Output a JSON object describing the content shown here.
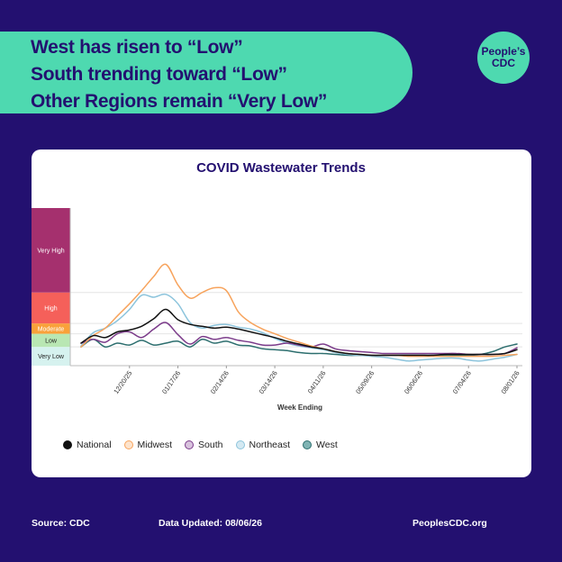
{
  "headline": {
    "line1": "West has risen to “Low”",
    "line2": "South trending toward “Low”",
    "line3": "Other Regions remain “Very Low”"
  },
  "logo": {
    "line1": "People’s",
    "line2": "CDC"
  },
  "footer": {
    "source": "Source: CDC",
    "updated": "Data Updated: 08/06/26",
    "site": "PeoplesCDC.org"
  },
  "colors": {
    "background": "#231070",
    "accent": "#4ed9b0"
  },
  "chart_data": {
    "type": "line",
    "title": "COVID Wastewater Trends",
    "xlabel": "Week Ending",
    "ylabel": "",
    "x_tick_labels": [
      "12/20/25",
      "01/17/26",
      "02/14/26",
      "03/14/26",
      "04/11/26",
      "05/09/26",
      "06/06/26",
      "07/04/26",
      "08/01/26"
    ],
    "x_tick_index": [
      4,
      8,
      12,
      16,
      20,
      24,
      28,
      32,
      36
    ],
    "x": [
      "11/22/25",
      "11/29/25",
      "12/06/25",
      "12/13/25",
      "12/20/25",
      "12/27/25",
      "01/03/26",
      "01/10/26",
      "01/17/26",
      "01/24/26",
      "01/31/26",
      "02/07/26",
      "02/14/26",
      "02/21/26",
      "02/28/26",
      "03/07/26",
      "03/14/26",
      "03/21/26",
      "03/28/26",
      "04/04/26",
      "04/11/26",
      "04/18/26",
      "04/25/26",
      "05/02/26",
      "05/09/26",
      "05/16/26",
      "05/23/26",
      "05/30/26",
      "06/06/26",
      "06/13/26",
      "06/20/26",
      "06/27/26",
      "07/04/26",
      "07/11/26",
      "07/18/26",
      "07/25/26",
      "08/01/26"
    ],
    "levels": [
      {
        "name": "Very Low",
        "range": [
          0,
          2
        ],
        "color": "#d6f2ef",
        "text": "#222222"
      },
      {
        "name": "Low",
        "range": [
          2,
          3.4
        ],
        "color": "#b9e7b3",
        "text": "#222222"
      },
      {
        "name": "Moderate",
        "range": [
          3.4,
          4.5
        ],
        "color": "#f9a13a",
        "text": "#ffffff"
      },
      {
        "name": "High",
        "range": [
          4.5,
          7.8
        ],
        "color": "#f5605a",
        "text": "#ffffff"
      },
      {
        "name": "Very High",
        "range": [
          7.8,
          16.8
        ],
        "color": "#a5306e",
        "text": "#ffffff"
      }
    ],
    "ylim": [
      0,
      16.8
    ],
    "series": [
      {
        "name": "National",
        "color": "#111111",
        "values": [
          2.4,
          3.2,
          3.0,
          3.6,
          3.8,
          4.2,
          5.0,
          6.0,
          4.9,
          4.4,
          4.2,
          4.0,
          4.1,
          3.9,
          3.6,
          3.3,
          3.0,
          2.6,
          2.3,
          2.0,
          1.8,
          1.5,
          1.3,
          1.2,
          1.1,
          1.1,
          1.1,
          1.1,
          1.1,
          1.1,
          1.2,
          1.2,
          1.2,
          1.2,
          1.2,
          1.3,
          1.7
        ]
      },
      {
        "name": "Midwest",
        "color": "#f7a35c",
        "values": [
          2.0,
          3.2,
          4.0,
          5.3,
          6.6,
          8.0,
          9.5,
          10.8,
          8.6,
          7.2,
          7.8,
          8.3,
          8.0,
          5.7,
          4.6,
          3.9,
          3.4,
          2.9,
          2.5,
          2.1,
          1.8,
          1.5,
          1.3,
          1.2,
          1.1,
          1.1,
          1.1,
          1.0,
          1.0,
          1.0,
          1.0,
          1.0,
          1.0,
          1.0,
          1.0,
          1.1,
          1.2
        ]
      },
      {
        "name": "South",
        "color": "#7b3b8a",
        "values": [
          2.4,
          2.8,
          2.5,
          3.4,
          3.6,
          3.0,
          3.9,
          4.6,
          3.3,
          2.3,
          3.1,
          2.8,
          3.0,
          2.7,
          2.5,
          2.2,
          2.2,
          2.4,
          2.2,
          2.0,
          2.3,
          1.8,
          1.6,
          1.5,
          1.4,
          1.3,
          1.3,
          1.3,
          1.3,
          1.3,
          1.3,
          1.3,
          1.2,
          1.2,
          1.2,
          1.3,
          1.9
        ]
      },
      {
        "name": "Northeast",
        "color": "#8cc4dc",
        "values": [
          2.1,
          3.5,
          4.0,
          4.8,
          6.0,
          7.5,
          7.3,
          7.6,
          6.6,
          4.6,
          4.0,
          4.3,
          4.4,
          4.1,
          3.9,
          3.5,
          2.9,
          2.4,
          2.1,
          1.9,
          1.7,
          1.4,
          1.2,
          1.1,
          1.0,
          0.9,
          0.7,
          0.5,
          0.6,
          0.7,
          0.8,
          0.8,
          0.6,
          0.5,
          0.7,
          0.9,
          1.2
        ]
      },
      {
        "name": "West",
        "color": "#2c6e6e",
        "values": [
          2.0,
          2.8,
          2.0,
          2.4,
          2.2,
          2.7,
          2.2,
          2.4,
          2.6,
          2.0,
          2.8,
          2.4,
          2.6,
          2.2,
          2.1,
          1.8,
          1.7,
          1.6,
          1.4,
          1.3,
          1.3,
          1.2,
          1.1,
          1.1,
          1.1,
          1.1,
          1.1,
          1.1,
          1.1,
          1.1,
          1.1,
          1.1,
          1.1,
          1.2,
          1.5,
          2.0,
          2.3
        ]
      }
    ],
    "grid": false,
    "legend_position": "bottom"
  }
}
